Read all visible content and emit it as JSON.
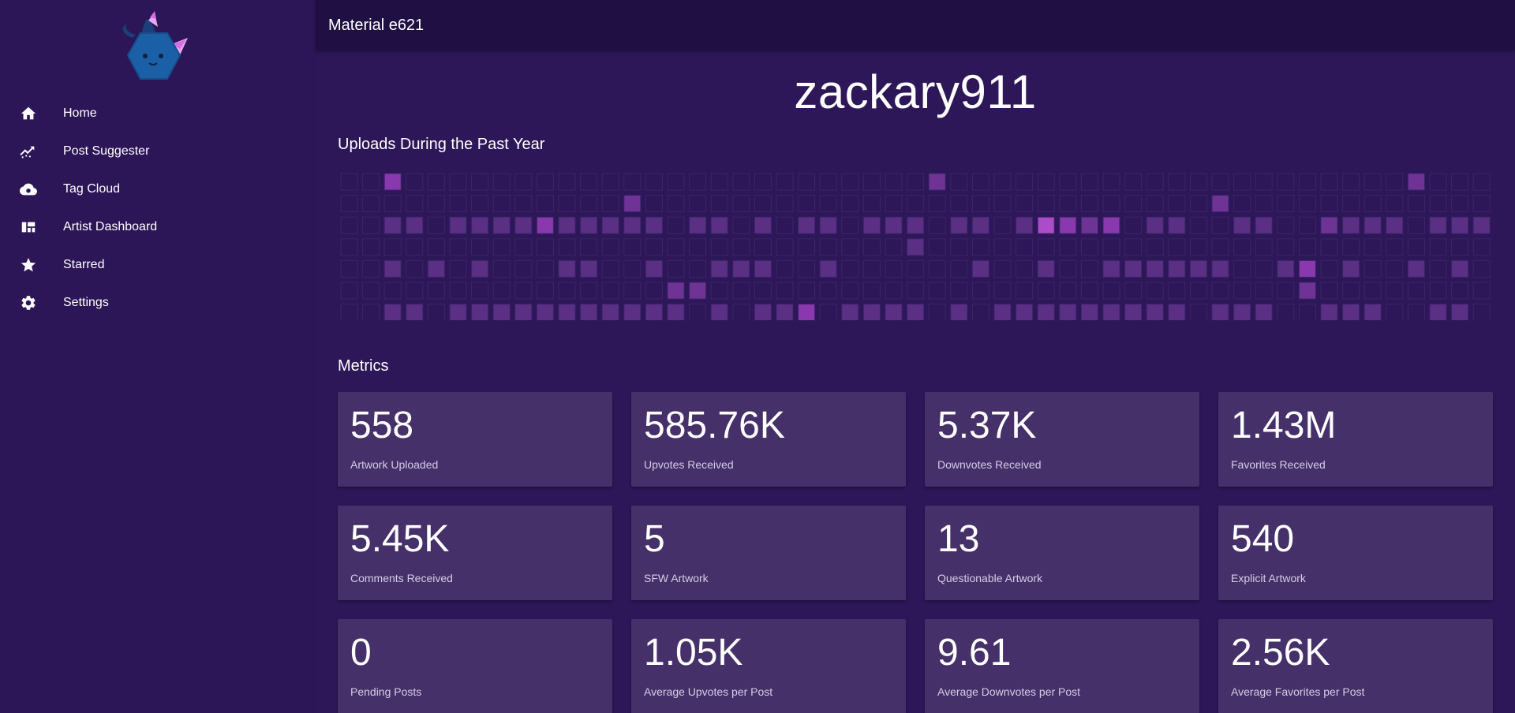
{
  "app": {
    "title": "Material e621"
  },
  "sidebar": {
    "items": [
      {
        "label": "Home",
        "icon": "home-icon"
      },
      {
        "label": "Post Suggester",
        "icon": "trending-icon"
      },
      {
        "label": "Tag Cloud",
        "icon": "cloud-icon"
      },
      {
        "label": "Artist Dashboard",
        "icon": "dashboard-icon"
      },
      {
        "label": "Starred",
        "icon": "star-icon"
      },
      {
        "label": "Settings",
        "icon": "gear-icon"
      }
    ]
  },
  "profile": {
    "username": "zackary911"
  },
  "uploads": {
    "title": "Uploads During the Past Year",
    "weeks": 53,
    "days": 7,
    "levels": [
      [
        0,
        0,
        3,
        0,
        0,
        0,
        0,
        0,
        0,
        0,
        0,
        0,
        0,
        0,
        0,
        0,
        0,
        0,
        0,
        0,
        0,
        0,
        0,
        0,
        0,
        0,
        0,
        2,
        0,
        0,
        0,
        0,
        0,
        0,
        0,
        0,
        0,
        0,
        0,
        0,
        0,
        0,
        0,
        0,
        0,
        0,
        0,
        0,
        0,
        2,
        0,
        0,
        0
      ],
      [
        0,
        0,
        0,
        0,
        0,
        0,
        0,
        0,
        0,
        0,
        0,
        0,
        0,
        2,
        0,
        0,
        0,
        0,
        0,
        0,
        0,
        0,
        0,
        0,
        0,
        0,
        0,
        0,
        0,
        0,
        0,
        0,
        0,
        0,
        0,
        0,
        0,
        0,
        0,
        0,
        2,
        0,
        0,
        0,
        0,
        0,
        0,
        0,
        0,
        0,
        0,
        0,
        0
      ],
      [
        0,
        0,
        1,
        1,
        0,
        1,
        1,
        1,
        1,
        3,
        1,
        1,
        1,
        1,
        1,
        0,
        1,
        1,
        0,
        1,
        0,
        1,
        1,
        0,
        1,
        1,
        1,
        0,
        1,
        1,
        0,
        1,
        4,
        3,
        2,
        3,
        0,
        1,
        1,
        0,
        0,
        1,
        1,
        0,
        0,
        2,
        1,
        1,
        1,
        0,
        1,
        1,
        1
      ],
      [
        0,
        0,
        0,
        0,
        0,
        0,
        0,
        0,
        0,
        0,
        0,
        0,
        0,
        0,
        0,
        0,
        0,
        0,
        0,
        0,
        0,
        0,
        0,
        0,
        0,
        0,
        1,
        0,
        0,
        0,
        0,
        0,
        0,
        0,
        0,
        0,
        0,
        0,
        0,
        0,
        0,
        0,
        0,
        0,
        0,
        0,
        0,
        0,
        0,
        0,
        0,
        0,
        0
      ],
      [
        0,
        0,
        1,
        0,
        1,
        0,
        1,
        0,
        0,
        0,
        1,
        1,
        0,
        0,
        1,
        0,
        0,
        1,
        1,
        1,
        0,
        0,
        1,
        0,
        0,
        0,
        0,
        0,
        0,
        1,
        0,
        0,
        1,
        0,
        0,
        1,
        1,
        1,
        1,
        1,
        1,
        0,
        0,
        1,
        3,
        0,
        1,
        0,
        0,
        1,
        0,
        1,
        0
      ],
      [
        0,
        0,
        0,
        0,
        0,
        0,
        0,
        0,
        0,
        0,
        0,
        0,
        0,
        0,
        0,
        2,
        2,
        0,
        0,
        0,
        0,
        0,
        0,
        0,
        0,
        0,
        0,
        0,
        0,
        0,
        0,
        0,
        0,
        0,
        0,
        0,
        0,
        0,
        0,
        0,
        0,
        0,
        0,
        0,
        2,
        0,
        0,
        0,
        0,
        0,
        0,
        0,
        0
      ],
      [
        0,
        0,
        1,
        1,
        0,
        1,
        1,
        1,
        1,
        1,
        1,
        1,
        1,
        1,
        1,
        1,
        0,
        1,
        0,
        1,
        1,
        3,
        0,
        1,
        1,
        1,
        1,
        0,
        1,
        0,
        1,
        1,
        1,
        1,
        1,
        1,
        1,
        1,
        1,
        0,
        1,
        1,
        1,
        0,
        0,
        1,
        1,
        1,
        0,
        0,
        1,
        1,
        0
      ]
    ]
  },
  "metrics": {
    "title": "Metrics",
    "items": [
      {
        "value": "558",
        "label": "Artwork Uploaded"
      },
      {
        "value": "585.76K",
        "label": "Upvotes Received"
      },
      {
        "value": "5.37K",
        "label": "Downvotes Received"
      },
      {
        "value": "1.43M",
        "label": "Favorites Received"
      },
      {
        "value": "5.45K",
        "label": "Comments Received"
      },
      {
        "value": "5",
        "label": "SFW Artwork"
      },
      {
        "value": "13",
        "label": "Questionable Artwork"
      },
      {
        "value": "540",
        "label": "Explicit Artwork"
      },
      {
        "value": "0",
        "label": "Pending Posts"
      },
      {
        "value": "1.05K",
        "label": "Average Upvotes per Post"
      },
      {
        "value": "9.61",
        "label": "Average Downvotes per Post"
      },
      {
        "value": "2.56K",
        "label": "Average Favorites per Post"
      }
    ]
  },
  "colors": {
    "background": "#2d1759",
    "appbar": "#1f0f42",
    "card": "#45306a",
    "level0": "#2d1759",
    "level1": "#5a2f84",
    "level2": "#6f3396",
    "level3": "#8a38ad",
    "level4": "#ac4cc8"
  }
}
